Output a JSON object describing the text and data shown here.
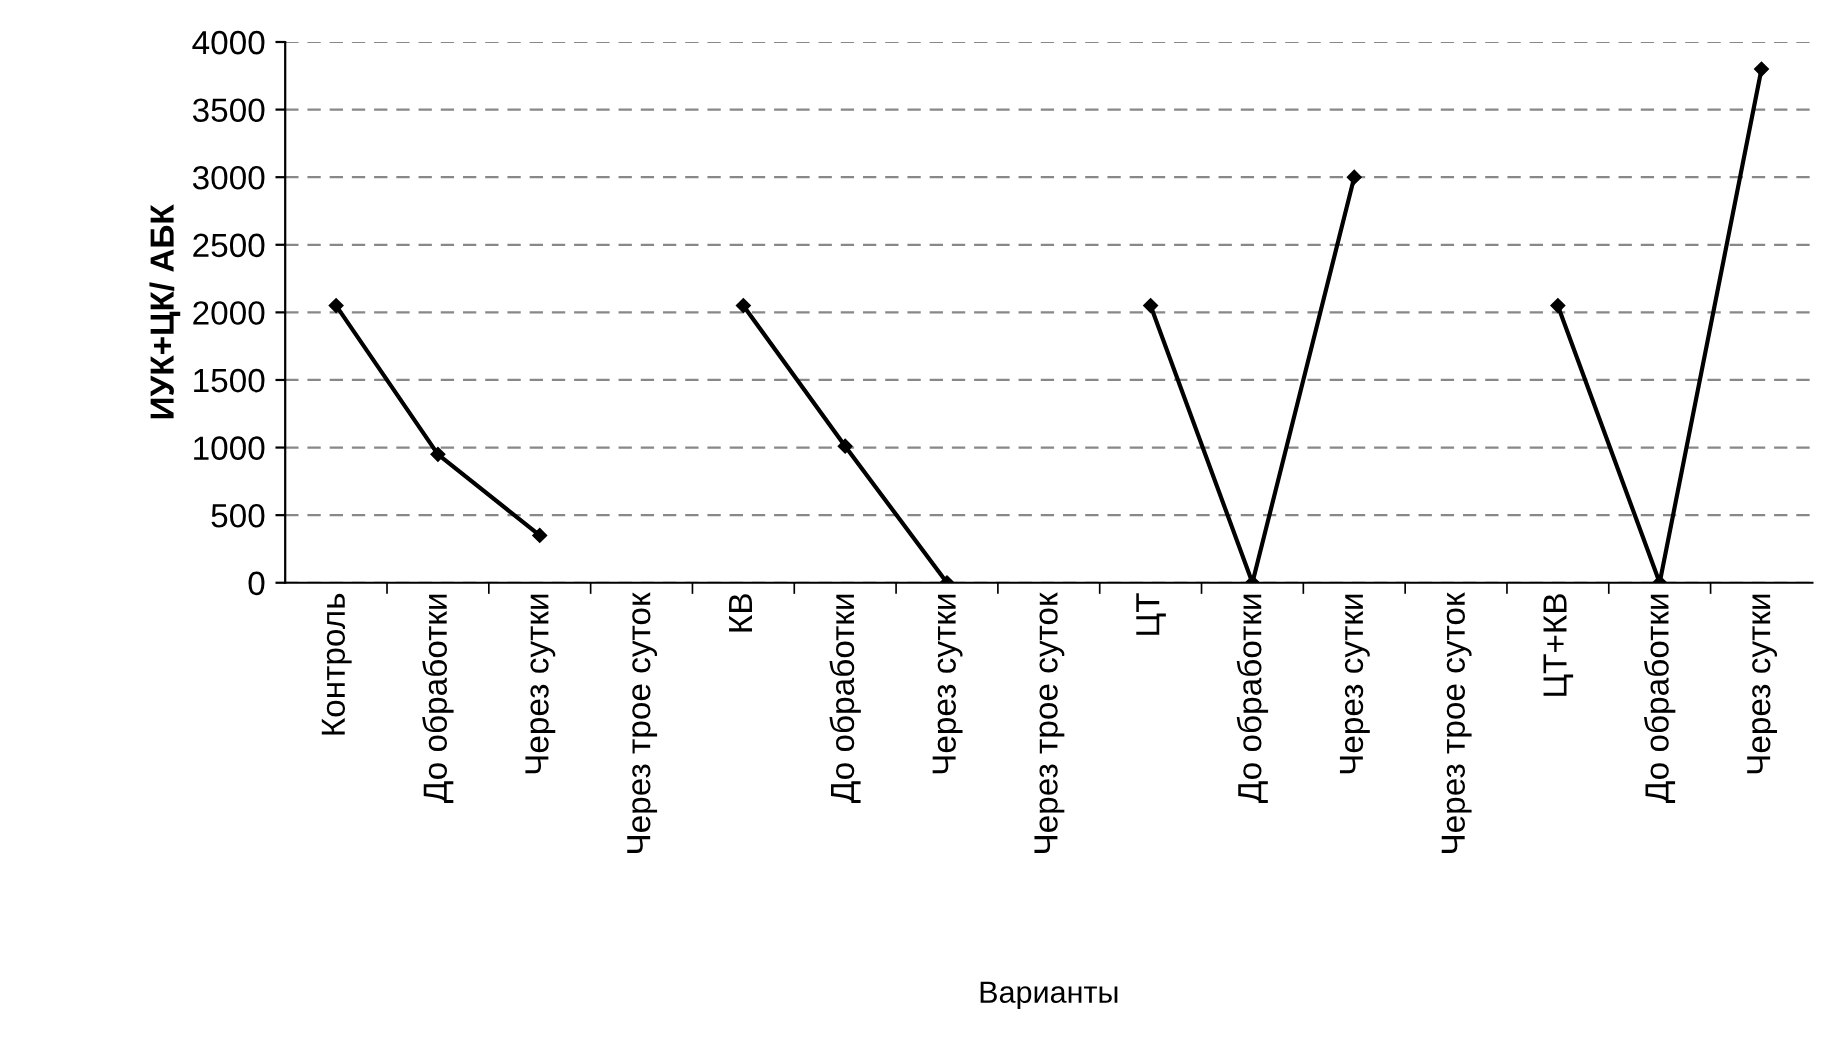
{
  "chart_data": {
    "type": "line",
    "xlabel": "Варианты",
    "ylabel": "ИУК+ЦК/ АБК",
    "categories": [
      "Контроль",
      "До обработки",
      "Через сутки",
      "Через трое суток",
      "КВ",
      "До обработки",
      "Через сутки",
      "Через трое суток",
      "ЦТ",
      "До обработки",
      "Через сутки",
      "Через трое суток",
      "ЦТ+КВ",
      "До обработки",
      "Через сутки"
    ],
    "series": [
      {
        "color": "#000000",
        "values": [
          2050,
          950,
          350,
          null,
          2050,
          1010,
          0,
          null,
          2050,
          0,
          3000,
          null,
          2050,
          0,
          3800
        ]
      }
    ],
    "ylim": [
      0,
      4000
    ],
    "yticks": [
      0,
      500,
      1000,
      1500,
      2000,
      2500,
      3000,
      3500,
      4000
    ],
    "grid": "y",
    "marker": "diamond",
    "line_style": "solid"
  }
}
